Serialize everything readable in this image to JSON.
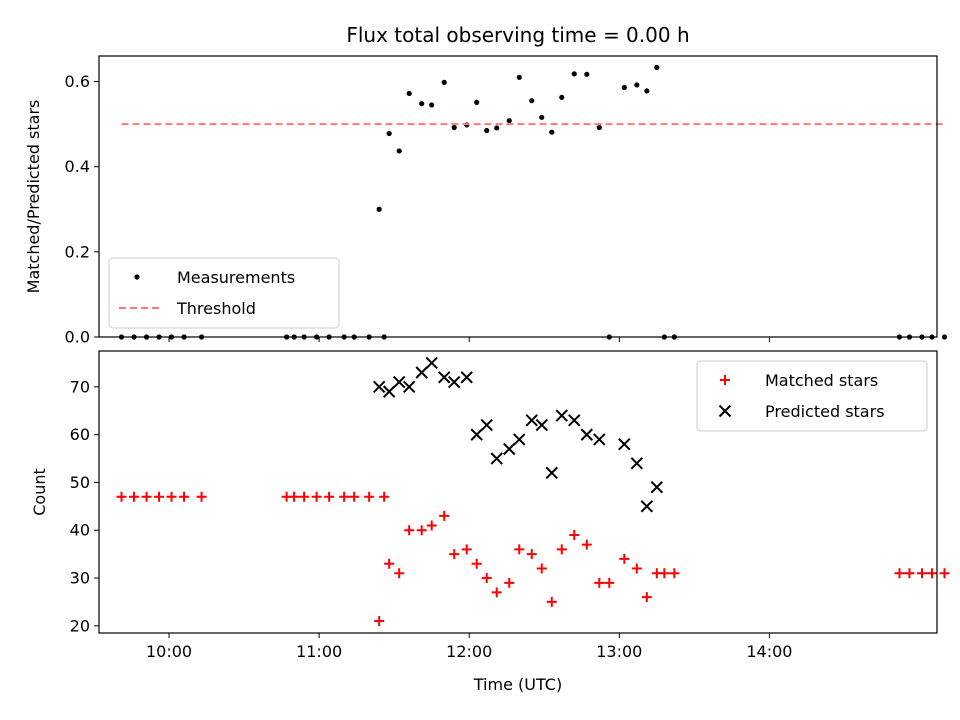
{
  "chart_data": {
    "title": "Flux total observing time = 0.00 h",
    "xlabel": "Time (UTC)",
    "xlim": [
      "09:32",
      "15:07"
    ],
    "x_ticks": [
      "10:00",
      "11:00",
      "12:00",
      "13:00",
      "14:00"
    ],
    "panels": [
      {
        "type": "scatter",
        "ylabel": "Matched/Predicted stars",
        "ylim": [
          0,
          0.66
        ],
        "y_ticks": [
          "0.0",
          "0.2",
          "0.4",
          "0.6"
        ],
        "grid": false,
        "legend_position": "lower-left",
        "series": [
          {
            "name": "Measurements",
            "marker": "dot",
            "color": "#000000",
            "points": [
              [
                "09:41",
                0.0
              ],
              [
                "09:46",
                0.0
              ],
              [
                "09:51",
                0.0
              ],
              [
                "09:56",
                0.0
              ],
              [
                "10:01",
                0.0
              ],
              [
                "10:06",
                0.0
              ],
              [
                "10:13",
                0.0
              ],
              [
                "10:47",
                0.0
              ],
              [
                "10:50",
                0.0
              ],
              [
                "10:54",
                0.0
              ],
              [
                "10:59",
                0.0
              ],
              [
                "11:04",
                0.0
              ],
              [
                "11:10",
                0.0
              ],
              [
                "11:14",
                0.0
              ],
              [
                "11:20",
                0.0
              ],
              [
                "11:26",
                0.0
              ],
              [
                "11:24",
                0.3
              ],
              [
                "11:28",
                0.478
              ],
              [
                "11:32",
                0.437
              ],
              [
                "11:36",
                0.572
              ],
              [
                "11:41",
                0.548
              ],
              [
                "11:45",
                0.545
              ],
              [
                "11:50",
                0.598
              ],
              [
                "11:54",
                0.492
              ],
              [
                "11:59",
                0.498
              ],
              [
                "12:03",
                0.551
              ],
              [
                "12:07",
                0.485
              ],
              [
                "12:11",
                0.491
              ],
              [
                "12:16",
                0.508
              ],
              [
                "12:20",
                0.61
              ],
              [
                "12:25",
                0.555
              ],
              [
                "12:29",
                0.516
              ],
              [
                "12:33",
                0.481
              ],
              [
                "12:37",
                0.563
              ],
              [
                "12:42",
                0.618
              ],
              [
                "12:47",
                0.617
              ],
              [
                "12:52",
                0.492
              ],
              [
                "12:56",
                0.0
              ],
              [
                "13:02",
                0.586
              ],
              [
                "13:07",
                0.592
              ],
              [
                "13:11",
                0.578
              ],
              [
                "13:15",
                0.633
              ],
              [
                "13:18",
                0.0
              ],
              [
                "13:22",
                0.0
              ],
              [
                "14:52",
                0.0
              ],
              [
                "14:56",
                0.0
              ],
              [
                "15:01",
                0.0
              ],
              [
                "15:05",
                0.0
              ],
              [
                "15:10",
                0.0
              ]
            ]
          },
          {
            "name": "Threshold",
            "marker": "dashed-line",
            "color": "#ff7777",
            "points": [
              [
                "09:41",
                0.5
              ],
              [
                "15:10",
                0.5
              ]
            ]
          }
        ]
      },
      {
        "type": "scatter",
        "ylabel": "Count",
        "ylim": [
          18.5,
          77.5
        ],
        "y_ticks": [
          "20",
          "30",
          "40",
          "50",
          "60",
          "70"
        ],
        "grid": false,
        "legend_position": "upper-right",
        "series": [
          {
            "name": "Matched stars",
            "marker": "plus",
            "color": "#ff0000",
            "points": [
              [
                "09:41",
                47
              ],
              [
                "09:46",
                47
              ],
              [
                "09:51",
                47
              ],
              [
                "09:56",
                47
              ],
              [
                "10:01",
                47
              ],
              [
                "10:06",
                47
              ],
              [
                "10:13",
                47
              ],
              [
                "10:47",
                47
              ],
              [
                "10:50",
                47
              ],
              [
                "10:54",
                47
              ],
              [
                "10:59",
                47
              ],
              [
                "11:04",
                47
              ],
              [
                "11:10",
                47
              ],
              [
                "11:14",
                47
              ],
              [
                "11:20",
                47
              ],
              [
                "11:26",
                47
              ],
              [
                "11:24",
                21
              ],
              [
                "11:28",
                33
              ],
              [
                "11:32",
                31
              ],
              [
                "11:36",
                40
              ],
              [
                "11:41",
                40
              ],
              [
                "11:45",
                41
              ],
              [
                "11:50",
                43
              ],
              [
                "11:54",
                35
              ],
              [
                "11:59",
                36
              ],
              [
                "12:03",
                33
              ],
              [
                "12:07",
                30
              ],
              [
                "12:11",
                27
              ],
              [
                "12:16",
                29
              ],
              [
                "12:20",
                36
              ],
              [
                "12:25",
                35
              ],
              [
                "12:29",
                32
              ],
              [
                "12:33",
                25
              ],
              [
                "12:37",
                36
              ],
              [
                "12:42",
                39
              ],
              [
                "12:47",
                37
              ],
              [
                "12:52",
                29
              ],
              [
                "12:56",
                29
              ],
              [
                "13:02",
                34
              ],
              [
                "13:07",
                32
              ],
              [
                "13:11",
                26
              ],
              [
                "13:15",
                31
              ],
              [
                "13:18",
                31
              ],
              [
                "13:22",
                31
              ],
              [
                "14:52",
                31
              ],
              [
                "14:56",
                31
              ],
              [
                "15:01",
                31
              ],
              [
                "15:05",
                31
              ],
              [
                "15:10",
                31
              ]
            ]
          },
          {
            "name": "Predicted stars",
            "marker": "x",
            "color": "#000000",
            "points": [
              [
                "11:24",
                70
              ],
              [
                "11:28",
                69
              ],
              [
                "11:32",
                71
              ],
              [
                "11:36",
                70
              ],
              [
                "11:41",
                73
              ],
              [
                "11:45",
                75
              ],
              [
                "11:50",
                72
              ],
              [
                "11:54",
                71
              ],
              [
                "11:59",
                72
              ],
              [
                "12:03",
                60
              ],
              [
                "12:07",
                62
              ],
              [
                "12:11",
                55
              ],
              [
                "12:16",
                57
              ],
              [
                "12:20",
                59
              ],
              [
                "12:25",
                63
              ],
              [
                "12:29",
                62
              ],
              [
                "12:33",
                52
              ],
              [
                "12:37",
                64
              ],
              [
                "12:42",
                63
              ],
              [
                "12:47",
                60
              ],
              [
                "12:52",
                59
              ],
              [
                "13:02",
                58
              ],
              [
                "13:07",
                54
              ],
              [
                "13:11",
                45
              ],
              [
                "13:15",
                49
              ]
            ]
          }
        ]
      }
    ]
  }
}
